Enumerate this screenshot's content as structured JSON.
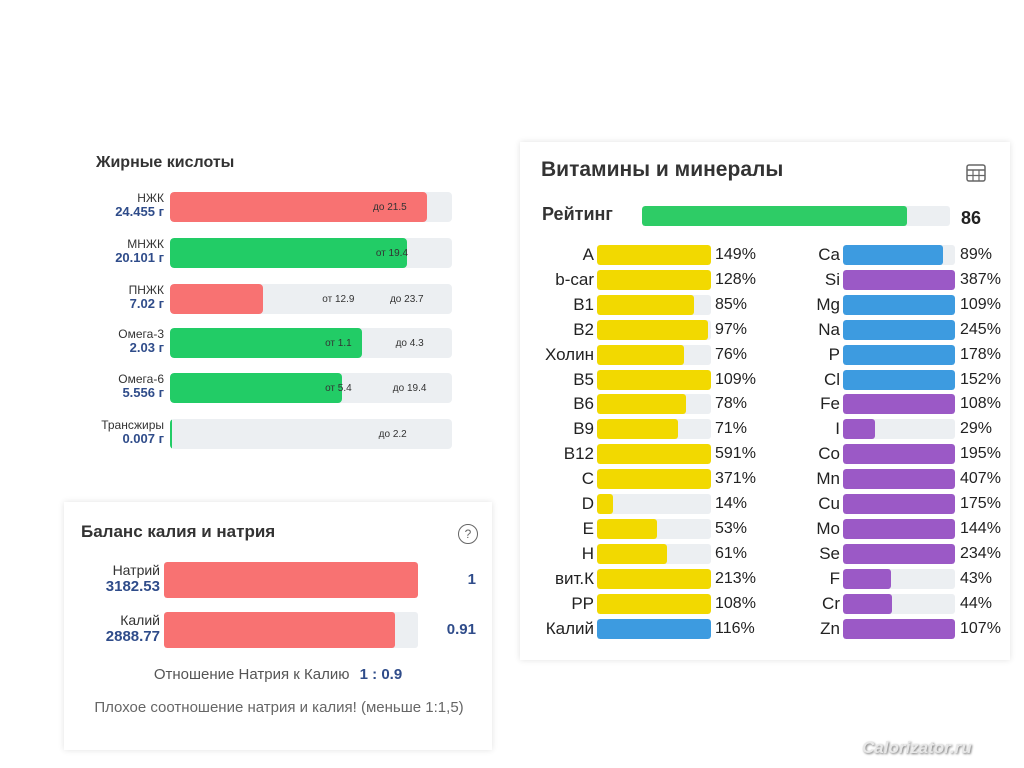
{
  "fatty_acids": {
    "title": "Жирные кислоты",
    "rows": [
      {
        "label": "НЖК",
        "value": "24.455 г",
        "color": "#f87272",
        "fill_pct": 91,
        "marks": [
          {
            "text": "до 21.5",
            "pct": 72
          }
        ]
      },
      {
        "label": "МНЖК",
        "value": "20.101 г",
        "color": "#22cc66",
        "fill_pct": 84,
        "marks": [
          {
            "text": "от 19.4",
            "pct": 73
          }
        ]
      },
      {
        "label": "ПНЖК",
        "value": "7.02 г",
        "color": "#f87272",
        "fill_pct": 33,
        "marks": [
          {
            "text": "от 12.9",
            "pct": 54
          },
          {
            "text": "до 23.7",
            "pct": 78
          }
        ]
      },
      {
        "label": "Омега-3",
        "value": "2.03 г",
        "color": "#22cc66",
        "fill_pct": 68,
        "marks": [
          {
            "text": "от 1.1",
            "pct": 55
          },
          {
            "text": "до 4.3",
            "pct": 80
          }
        ]
      },
      {
        "label": "Омега-6",
        "value": "5.556 г",
        "color": "#22cc66",
        "fill_pct": 61,
        "marks": [
          {
            "text": "от 5.4",
            "pct": 55
          },
          {
            "text": "до 19.4",
            "pct": 79
          }
        ]
      },
      {
        "label": "Трансжиры",
        "value": "0.007 г",
        "color": "#22cc66",
        "fill_pct": 1,
        "marks": [
          {
            "text": "до 2.2",
            "pct": 74
          }
        ]
      }
    ]
  },
  "balance": {
    "title": "Баланс калия и натрия",
    "help_icon": "question-circle-icon",
    "rows": [
      {
        "label": "Натрий",
        "value": "3182.53",
        "num": "1",
        "fill_pct": 100
      },
      {
        "label": "Калий",
        "value": "2888.77",
        "num": "0.91",
        "fill_pct": 91
      }
    ],
    "ratio_label": "Отношение Натрия к Калию",
    "ratio_value": "1 : 0.9",
    "warning": "Плохое соотношение натрия и калия! (меньше 1:1,5)"
  },
  "vitamins": {
    "title": "Витамины и минералы",
    "table_icon": "table-grid-icon",
    "rating_label": "Рейтинг",
    "rating_value": "86",
    "rating_fill_pct": 86,
    "left": [
      {
        "name": "A",
        "pct": "149%",
        "fill": 100,
        "color": "#f2d900"
      },
      {
        "name": "b-car",
        "pct": "128%",
        "fill": 100,
        "color": "#f2d900"
      },
      {
        "name": "B1",
        "pct": "85%",
        "fill": 85,
        "color": "#f2d900"
      },
      {
        "name": "B2",
        "pct": "97%",
        "fill": 97,
        "color": "#f2d900"
      },
      {
        "name": "Холин",
        "pct": "76%",
        "fill": 76,
        "color": "#f2d900"
      },
      {
        "name": "B5",
        "pct": "109%",
        "fill": 100,
        "color": "#f2d900"
      },
      {
        "name": "B6",
        "pct": "78%",
        "fill": 78,
        "color": "#f2d900"
      },
      {
        "name": "B9",
        "pct": "71%",
        "fill": 71,
        "color": "#f2d900"
      },
      {
        "name": "B12",
        "pct": "591%",
        "fill": 100,
        "color": "#f2d900"
      },
      {
        "name": "C",
        "pct": "371%",
        "fill": 100,
        "color": "#f2d900"
      },
      {
        "name": "D",
        "pct": "14%",
        "fill": 14,
        "color": "#f2d900"
      },
      {
        "name": "E",
        "pct": "53%",
        "fill": 53,
        "color": "#f2d900"
      },
      {
        "name": "H",
        "pct": "61%",
        "fill": 61,
        "color": "#f2d900"
      },
      {
        "name": "вит.К",
        "pct": "213%",
        "fill": 100,
        "color": "#f2d900"
      },
      {
        "name": "PP",
        "pct": "108%",
        "fill": 100,
        "color": "#f2d900"
      },
      {
        "name": "Калий",
        "pct": "116%",
        "fill": 100,
        "color": "#3d9be0"
      }
    ],
    "right": [
      {
        "name": "Ca",
        "pct": "89%",
        "fill": 89,
        "color": "#3d9be0"
      },
      {
        "name": "Si",
        "pct": "387%",
        "fill": 100,
        "color": "#9b59c6"
      },
      {
        "name": "Mg",
        "pct": "109%",
        "fill": 100,
        "color": "#3d9be0"
      },
      {
        "name": "Na",
        "pct": "245%",
        "fill": 100,
        "color": "#3d9be0"
      },
      {
        "name": "P",
        "pct": "178%",
        "fill": 100,
        "color": "#3d9be0"
      },
      {
        "name": "Cl",
        "pct": "152%",
        "fill": 100,
        "color": "#3d9be0"
      },
      {
        "name": "Fe",
        "pct": "108%",
        "fill": 100,
        "color": "#9b59c6"
      },
      {
        "name": "I",
        "pct": "29%",
        "fill": 29,
        "color": "#9b59c6"
      },
      {
        "name": "Co",
        "pct": "195%",
        "fill": 100,
        "color": "#9b59c6"
      },
      {
        "name": "Mn",
        "pct": "407%",
        "fill": 100,
        "color": "#9b59c6"
      },
      {
        "name": "Cu",
        "pct": "175%",
        "fill": 100,
        "color": "#9b59c6"
      },
      {
        "name": "Mo",
        "pct": "144%",
        "fill": 100,
        "color": "#9b59c6"
      },
      {
        "name": "Se",
        "pct": "234%",
        "fill": 100,
        "color": "#9b59c6"
      },
      {
        "name": "F",
        "pct": "43%",
        "fill": 43,
        "color": "#9b59c6"
      },
      {
        "name": "Cr",
        "pct": "44%",
        "fill": 44,
        "color": "#9b59c6"
      },
      {
        "name": "Zn",
        "pct": "107%",
        "fill": 100,
        "color": "#9b59c6"
      }
    ]
  },
  "watermark": "Calorizator.ru"
}
